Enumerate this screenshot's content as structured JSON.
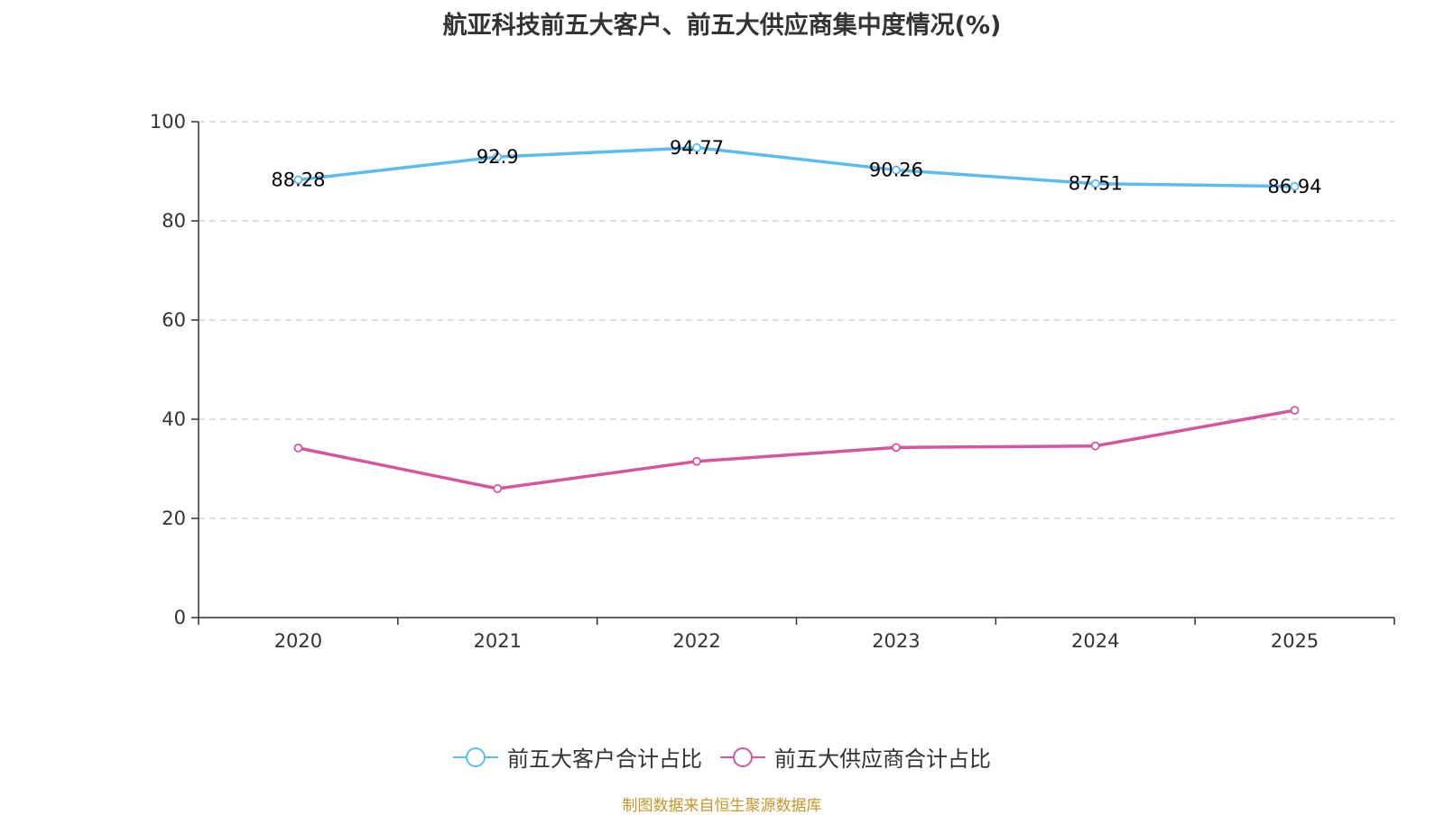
{
  "chart_data": {
    "type": "line",
    "title": "航亚科技前五大客户、前五大供应商集中度情况(%)",
    "categories": [
      "2020",
      "2021",
      "2022",
      "2023",
      "2024",
      "2025"
    ],
    "ylim": [
      0,
      100
    ],
    "yticks": [
      0,
      20,
      40,
      60,
      80,
      100
    ],
    "grid": true,
    "legend_position": "bottom-center",
    "series": [
      {
        "name": "前五大客户合计占比",
        "color": "#5bbcf0",
        "values": [
          88.28,
          92.9,
          94.77,
          90.26,
          87.51,
          86.94
        ],
        "labels": [
          "88.28",
          "92.9",
          "94.77",
          "90.26",
          "87.51",
          "86.94"
        ],
        "show_labels": true
      },
      {
        "name": "前五大供应商合计占比",
        "color": "#d6569e",
        "values": [
          34.2,
          26.0,
          31.5,
          34.3,
          34.6,
          41.8
        ],
        "show_labels": false
      }
    ]
  },
  "source_note": "制图数据来自恒生聚源数据库"
}
